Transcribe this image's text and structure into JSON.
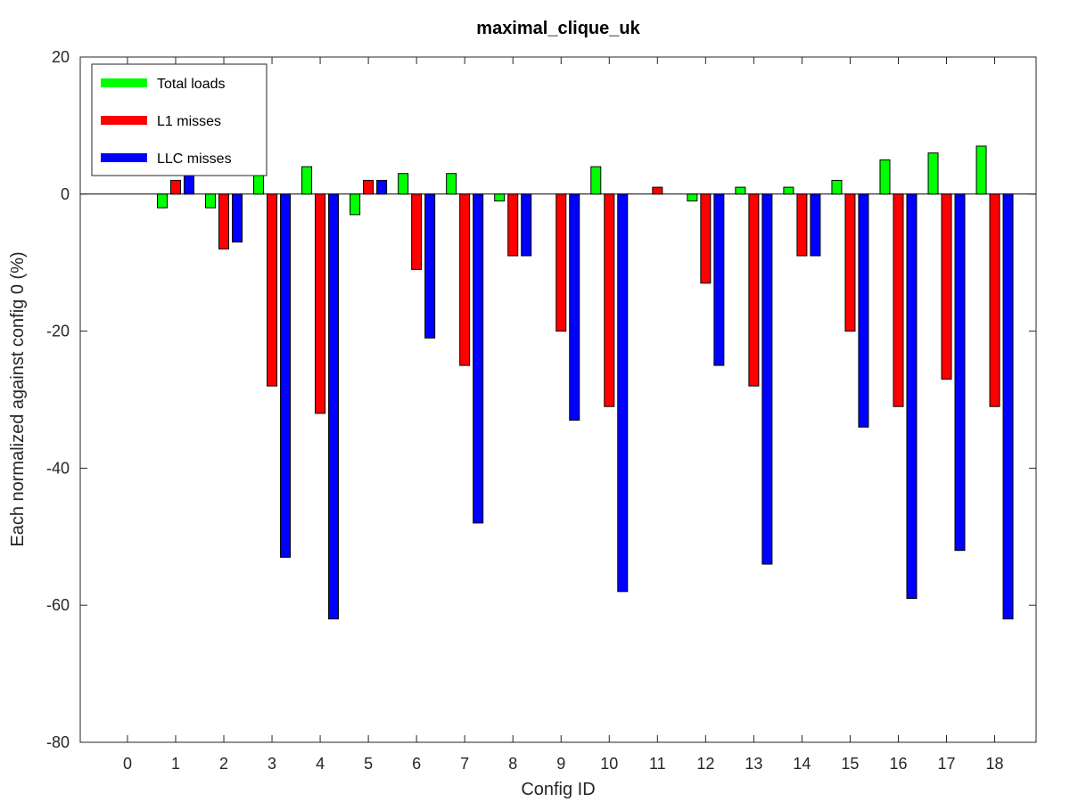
{
  "chart_data": {
    "type": "bar",
    "title": "maximal_clique_uk",
    "xlabel": "Config ID",
    "ylabel": "Each normalized against config 0 (%)",
    "ylim": [
      -80,
      20
    ],
    "yticks": [
      -80,
      -60,
      -40,
      -20,
      0,
      20
    ],
    "categories": [
      "0",
      "1",
      "2",
      "3",
      "4",
      "5",
      "6",
      "7",
      "8",
      "9",
      "10",
      "11",
      "12",
      "13",
      "14",
      "15",
      "16",
      "17",
      "18"
    ],
    "grid": false,
    "legend_position": "top-left",
    "series": [
      {
        "name": "Total loads",
        "color": "#00ff00",
        "values": [
          0,
          -2,
          -2,
          3,
          4,
          -3,
          3,
          3,
          -1,
          0,
          4,
          0,
          -1,
          1,
          1,
          2,
          5,
          6,
          7
        ]
      },
      {
        "name": "L1 misses",
        "color": "#ff0000",
        "values": [
          0,
          2,
          -8,
          -28,
          -32,
          2,
          -11,
          -25,
          -9,
          -20,
          -31,
          1,
          -13,
          -28,
          -9,
          -20,
          -31,
          -27,
          -31
        ]
      },
      {
        "name": "LLC misses",
        "color": "#0000ff",
        "values": [
          0,
          4,
          -7,
          -53,
          -62,
          2,
          -21,
          -48,
          -9,
          -33,
          -58,
          0,
          -25,
          -54,
          -9,
          -34,
          -59,
          -52,
          -62
        ]
      }
    ]
  }
}
